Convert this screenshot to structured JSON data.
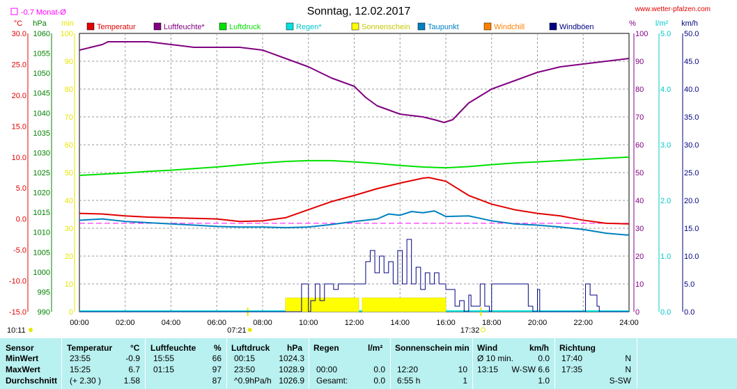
{
  "header": {
    "title": "Sonntag, 12.02.2017",
    "site": "www.wetter-pfalzen.com",
    "month_avg": "-0.7 Monat-Ø"
  },
  "colors": {
    "temperatur": "#e00000",
    "luftfeuchte": "#800080",
    "luftdruck": "#00e000",
    "regen": "#00e0e0",
    "sonnenschein": "#ffff00",
    "taupunkt": "#0080c0",
    "windchill": "#ff8000",
    "windboeen": "#000080",
    "monthavg": "#ff00ff"
  },
  "chart_data": {
    "type": "line",
    "title": "Sonntag, 12.02.2017",
    "xlabel": "",
    "ylabel": "",
    "x_ticks": [
      "00:00",
      "02:00",
      "04:00",
      "06:00",
      "08:00",
      "10:00",
      "12:00",
      "14:00",
      "16:00",
      "18:00",
      "20:00",
      "22:00",
      "24:00"
    ],
    "xlim": [
      0,
      24
    ],
    "grid": true,
    "axes": {
      "temp": {
        "unit": "°C",
        "ylim": [
          -15,
          30
        ],
        "ticks": [
          "-15.0",
          "-10.0",
          "-5.0",
          "0.0",
          "5.0",
          "10.0",
          "15.0",
          "20.0",
          "25.0",
          "30.0"
        ]
      },
      "hpa": {
        "unit": "hPa",
        "ylim": [
          990,
          1060
        ],
        "ticks": [
          "990",
          "995",
          "1000",
          "1005",
          "1010",
          "1015",
          "1020",
          "1025",
          "1030",
          "1035",
          "1040",
          "1045",
          "1050",
          "1055",
          "1060"
        ]
      },
      "min": {
        "unit": "min",
        "ylim": [
          0,
          100
        ],
        "ticks": [
          "0",
          "10",
          "20",
          "30",
          "40",
          "50",
          "60",
          "70",
          "80",
          "90",
          "100"
        ]
      },
      "pct": {
        "unit": "%",
        "ylim": [
          0,
          100
        ],
        "ticks": [
          "0",
          "10",
          "20",
          "30",
          "40",
          "50",
          "60",
          "70",
          "80",
          "90",
          "100"
        ]
      },
      "lm2": {
        "unit": "l/m²",
        "ylim": [
          0,
          5
        ],
        "ticks": [
          "0.0",
          "1.0",
          "2.0",
          "3.0",
          "4.0",
          "5.0"
        ]
      },
      "kmh": {
        "unit": "km/h",
        "ylim": [
          0,
          50
        ],
        "ticks": [
          "0.0",
          "5.0",
          "10.0",
          "15.0",
          "20.0",
          "25.0",
          "30.0",
          "35.0",
          "40.0",
          "45.0",
          "50.0"
        ]
      }
    },
    "legend": [
      "Temperatur",
      "Luftfeuchte*",
      "Luftdruck",
      "Regen*",
      "Sonnenschein",
      "Taupunkt",
      "Windchill",
      "Windböen"
    ],
    "month_avg_temp": -0.7,
    "sun_events": {
      "sunrise": "07:21",
      "sunset": "17:32",
      "moonrise": "10:11"
    },
    "series": [
      {
        "name": "Temperatur",
        "axis": "temp",
        "x": [
          0,
          1,
          2,
          3,
          4,
          5,
          6,
          7,
          8,
          9,
          10,
          11,
          12,
          13,
          14,
          15,
          15.25,
          16,
          17,
          18,
          19,
          20,
          21,
          22,
          23,
          24
        ],
        "values": [
          0.9,
          0.8,
          0.5,
          0.3,
          0.2,
          0.1,
          0.0,
          -0.4,
          -0.3,
          0.2,
          1.5,
          2.8,
          3.8,
          4.9,
          5.8,
          6.6,
          6.7,
          6.1,
          3.8,
          2.4,
          1.5,
          0.9,
          0.5,
          -0.2,
          -0.7,
          -0.8
        ]
      },
      {
        "name": "Luftfeuchte*",
        "axis": "pct",
        "x": [
          0,
          1,
          1.25,
          2,
          3,
          4,
          5,
          6,
          7,
          8,
          9,
          10,
          11,
          12,
          12.5,
          13,
          14,
          15,
          15.5,
          15.92,
          16.3,
          17,
          18,
          19,
          20,
          21,
          22,
          23,
          24
        ],
        "values": [
          94,
          96,
          97,
          97,
          97,
          96,
          95,
          95,
          95,
          94,
          91,
          88,
          84,
          81,
          77,
          74,
          71,
          70,
          69,
          68,
          69,
          75,
          80,
          83,
          86,
          88,
          89,
          90,
          91
        ]
      },
      {
        "name": "Luftdruck",
        "axis": "hpa",
        "x": [
          0,
          1,
          2,
          3,
          4,
          5,
          6,
          7,
          8,
          9,
          10,
          11,
          12,
          13,
          14,
          15,
          16,
          17,
          18,
          19,
          20,
          21,
          22,
          23,
          24
        ],
        "values": [
          1024.3,
          1024.6,
          1024.9,
          1025.3,
          1025.6,
          1026.0,
          1026.4,
          1026.9,
          1027.4,
          1027.8,
          1028.0,
          1028.0,
          1027.7,
          1027.3,
          1026.8,
          1026.4,
          1026.2,
          1026.5,
          1027.0,
          1027.4,
          1027.7,
          1028.0,
          1028.3,
          1028.6,
          1028.9
        ]
      },
      {
        "name": "Taupunkt",
        "axis": "temp",
        "x": [
          0,
          1,
          2,
          3,
          4,
          5,
          6,
          7,
          8,
          9,
          10,
          11,
          12,
          13,
          13.5,
          14,
          14.5,
          15,
          15.5,
          16,
          17,
          18,
          19,
          20,
          21,
          22,
          23,
          23.92,
          24
        ],
        "values": [
          -0.2,
          0.0,
          -0.4,
          -0.6,
          -0.8,
          -1.0,
          -1.2,
          -1.3,
          -1.3,
          -1.4,
          -1.3,
          -0.9,
          -0.4,
          0.0,
          0.8,
          0.6,
          1.2,
          1.0,
          1.3,
          0.4,
          0.5,
          -0.3,
          -0.8,
          -1.0,
          -1.3,
          -1.7,
          -2.3,
          -2.6,
          -2.5
        ]
      },
      {
        "name": "Sonnenschein",
        "axis": "min",
        "x": [
          9,
          12.2,
          12.35,
          16
        ],
        "values": [
          5,
          5,
          5,
          5
        ]
      },
      {
        "name": "Windböen",
        "axis": "kmh",
        "x": [
          0,
          9.6,
          9.7,
          9.9,
          10.0,
          10.1,
          10.3,
          10.5,
          10.7,
          10.9,
          11.1,
          11.3,
          11.5,
          11.7,
          11.9,
          12.1,
          12.3,
          12.5,
          12.7,
          12.9,
          13.1,
          13.3,
          13.5,
          13.7,
          13.9,
          14.1,
          14.3,
          14.5,
          14.7,
          14.9,
          15.1,
          15.3,
          15.5,
          15.7,
          16.0,
          16.3,
          16.4,
          16.6,
          16.8,
          17.0,
          17.1,
          17.3,
          17.5,
          17.7,
          17.9,
          18.0,
          18.5,
          19.0,
          19.5,
          19.6,
          19.8,
          20.0,
          20.1,
          20.3,
          21.9,
          22.1,
          22.3,
          22.6,
          22.7,
          24
        ],
        "values": [
          0,
          0,
          5,
          5,
          0,
          2,
          5,
          2,
          5,
          5,
          4,
          5,
          5,
          5,
          5,
          5,
          5,
          9,
          11,
          7,
          10,
          7,
          9,
          5,
          11,
          5,
          13,
          5,
          8,
          4,
          7,
          5,
          7,
          5,
          4,
          4,
          1,
          2,
          0,
          3,
          1,
          1,
          5,
          1,
          0,
          5,
          5,
          5,
          5,
          1,
          0,
          4,
          0,
          0,
          0,
          5,
          3,
          1,
          0,
          0
        ]
      }
    ]
  },
  "table": {
    "headers": {
      "sensor": "Sensor",
      "temperatur": "Temperatur",
      "temp_unit": "°C",
      "luftfeuchte": "Luftfeuchte",
      "lf_unit": "%",
      "luftdruck": "Luftdruck",
      "ld_unit": "hPa",
      "regen": "Regen",
      "regen_unit": "l/m²",
      "sonne": "Sonnenschein min",
      "wind": "Wind",
      "wind_unit": "km/h",
      "richtung": "Richtung"
    },
    "rows": [
      {
        "label": "MinWert",
        "t_time": "23:55",
        "t_val": "-0.9",
        "lf_time": "15:55",
        "lf_val": "66",
        "ld_time": "00:15",
        "ld_val": "1024.3",
        "r_time": "",
        "r_val": "",
        "s_time": "",
        "s_val": "",
        "w_time": "Ø 10 min.",
        "w_val": "0.0",
        "d_time": "17:40",
        "d_val": "N"
      },
      {
        "label": "MaxWert",
        "t_time": "15:25",
        "t_val": "6.7",
        "lf_time": "01:15",
        "lf_val": "97",
        "ld_time": "23:50",
        "ld_val": "1028.9",
        "r_time": "00:00",
        "r_val": "0.0",
        "s_time": "12:20",
        "s_val": "10",
        "w_time": "13:15",
        "w_val": "W-SW 6.6",
        "d_time": "17:35",
        "d_val": "N"
      },
      {
        "label": "Durchschnitt",
        "t_time": "(+ 2.30 )",
        "t_val": "1.58",
        "lf_time": "",
        "lf_val": "87",
        "ld_time": "^0.9hPa/h",
        "ld_val": "1026.9",
        "r_time": "Gesamt:",
        "r_val": "0.0",
        "s_time": "6:55 h",
        "s_val": "1",
        "w_time": "",
        "w_val": "1.0",
        "d_time": "",
        "d_val": "S-SW"
      }
    ]
  }
}
